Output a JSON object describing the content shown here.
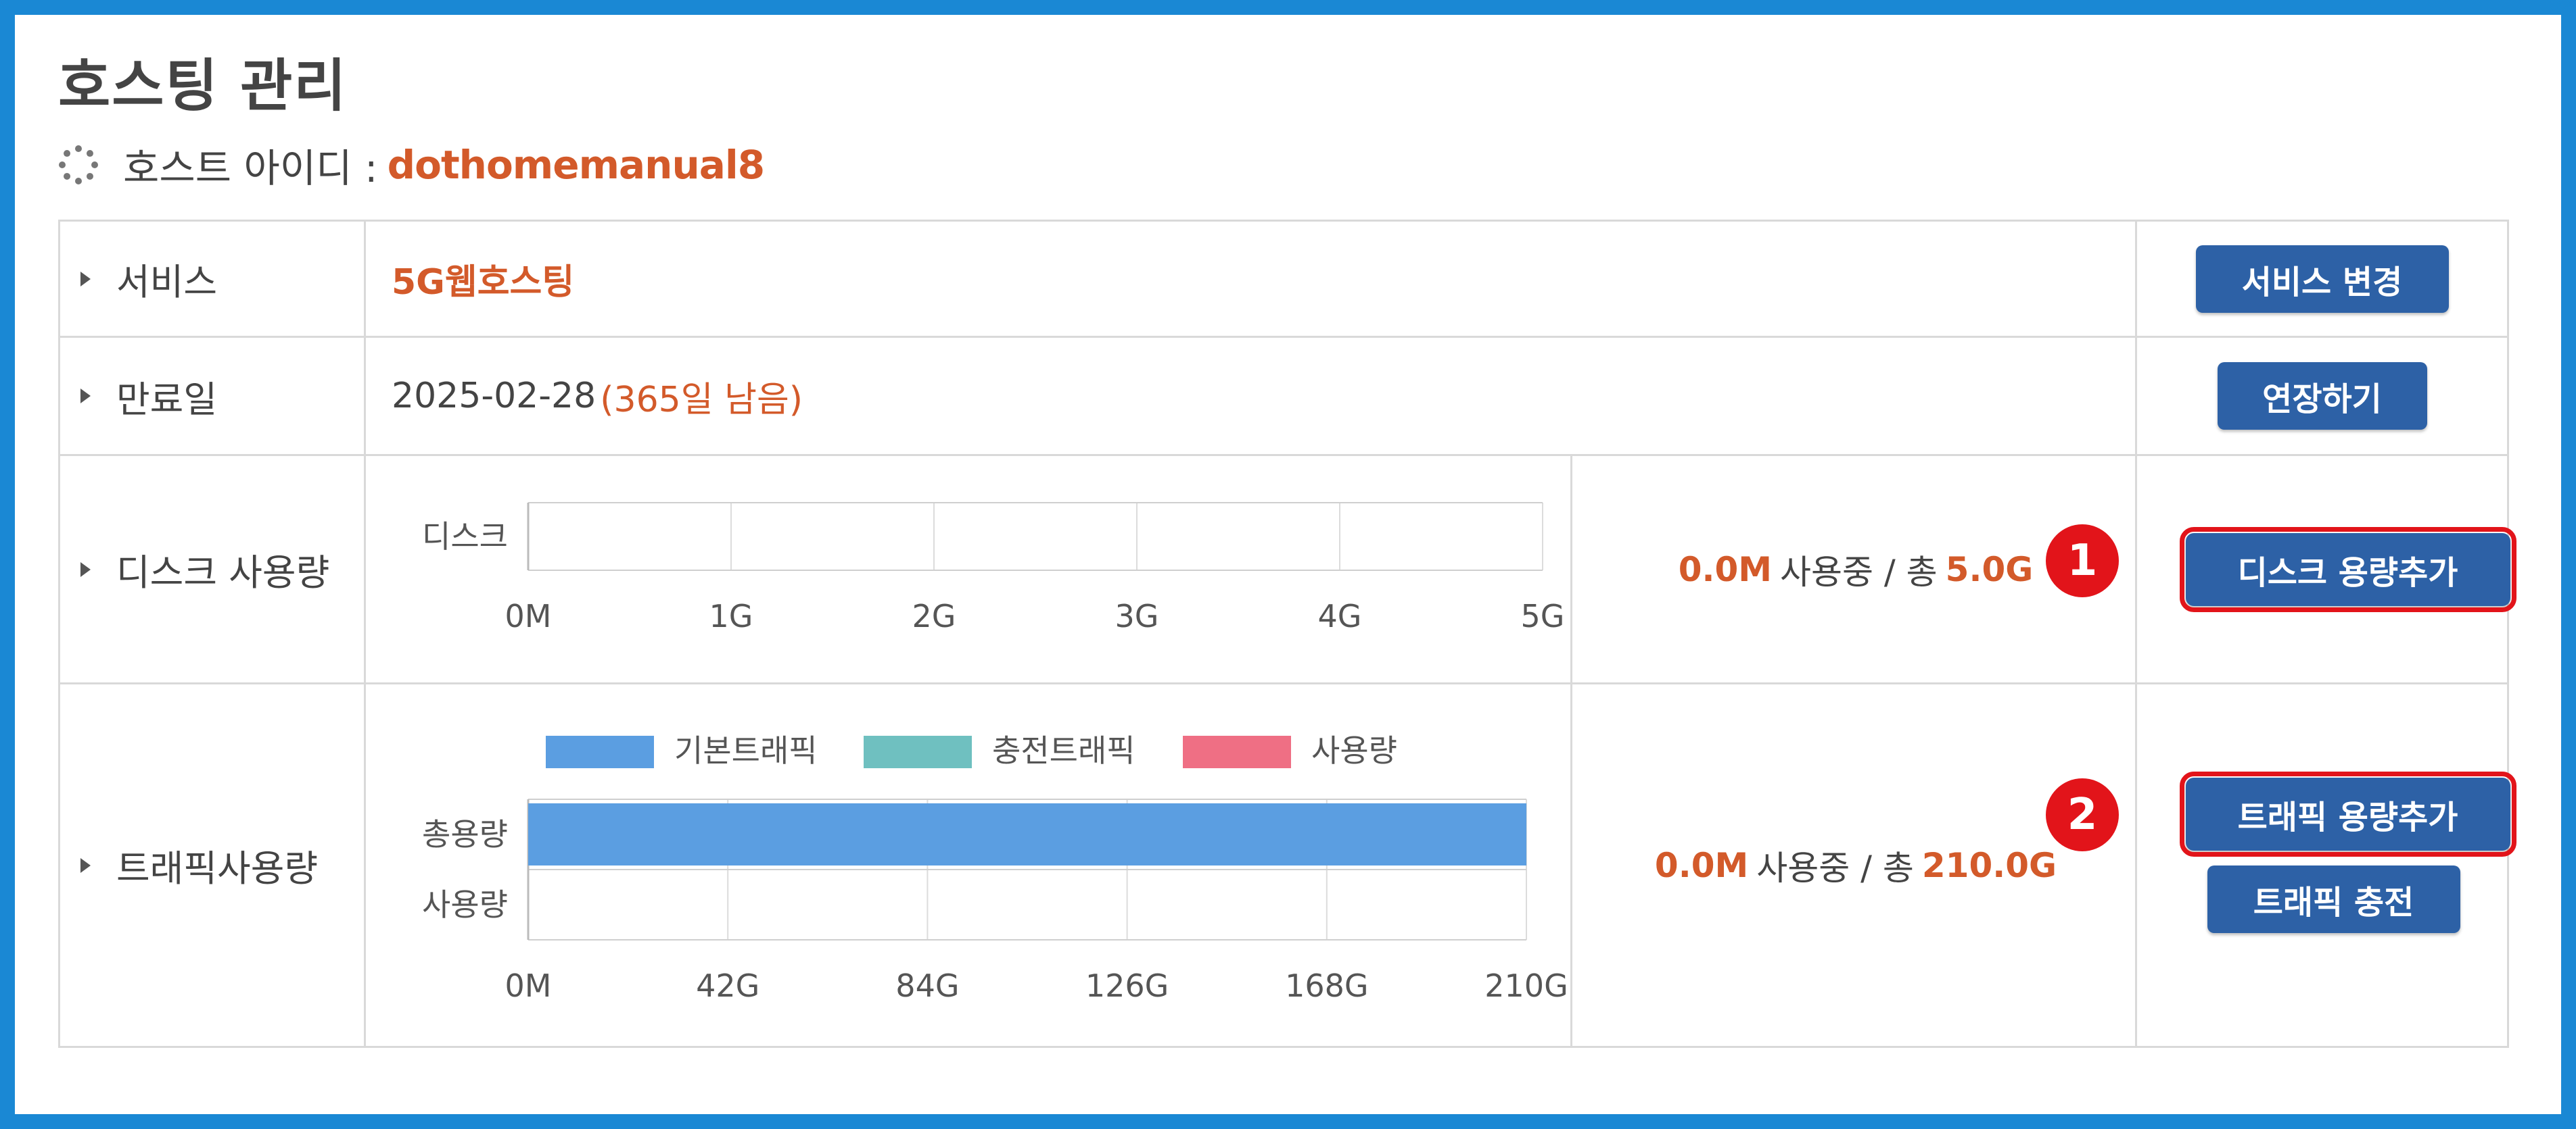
{
  "page": {
    "title": "호스팅 관리"
  },
  "host": {
    "label": "호스트 아이디 :",
    "id": "dothomemanual8"
  },
  "service": {
    "label": "서비스",
    "value": "5G웹호스팅",
    "button": "서비스 변경"
  },
  "expiry": {
    "label": "만료일",
    "date": "2025-02-28",
    "remaining": "(365일 남음)",
    "button": "연장하기"
  },
  "disk": {
    "label": "디스크 사용량",
    "used": "0.0M",
    "used_text": "사용중 / 총",
    "total": "5.0G",
    "button": "디스크 용량추가",
    "callout_number": "1"
  },
  "traffic": {
    "label": "트래픽사용량",
    "used": "0.0M",
    "used_text": "사용중 / 총",
    "total": "210.0G",
    "button_add": "트래픽 용량추가",
    "button_charge": "트래픽 충전",
    "callout_number": "2"
  },
  "chart_data": [
    {
      "type": "bar",
      "orientation": "horizontal",
      "categories": [
        "디스크"
      ],
      "series": [
        {
          "values": [
            0
          ]
        }
      ],
      "x_ticks": [
        "0M",
        "1G",
        "2G",
        "3G",
        "4G",
        "5G"
      ],
      "xlim": [
        0,
        5
      ],
      "grid": true
    },
    {
      "type": "bar",
      "orientation": "horizontal",
      "stacked": true,
      "categories": [
        "총용량",
        "사용량"
      ],
      "legend": [
        "기본트래픽",
        "충전트래픽",
        "사용량"
      ],
      "legend_position": "top",
      "series": [
        {
          "name": "기본트래픽",
          "color": "#5b9ee1",
          "values": [
            210,
            0
          ]
        },
        {
          "name": "충전트래픽",
          "color": "#6fc0c0",
          "values": [
            0,
            0
          ]
        },
        {
          "name": "사용량",
          "color": "#ef6f84",
          "values": [
            0,
            0
          ]
        }
      ],
      "x_ticks": [
        "0M",
        "42G",
        "84G",
        "126G",
        "168G",
        "210G"
      ],
      "xlim": [
        0,
        210
      ],
      "grid": true
    }
  ]
}
